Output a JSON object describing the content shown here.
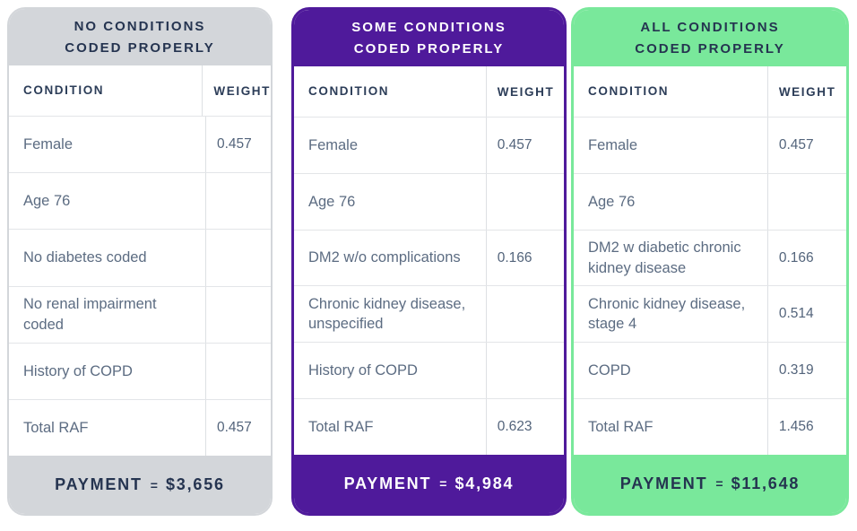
{
  "columns": {
    "condition": "CONDITION",
    "weight": "WEIGHT"
  },
  "cards": [
    {
      "title_line1": "NO CONDITIONS",
      "title_line2": "CODED PROPERLY",
      "accent_color": "#d3d6da",
      "header_text_color": "#253450",
      "footer_text_color": "#253450",
      "payment_label": "PAYMENT",
      "payment_equals": "=",
      "payment_value": "$3,656",
      "rows": [
        {
          "condition": "Female",
          "weight": "0.457"
        },
        {
          "condition": "Age 76",
          "weight": ""
        },
        {
          "condition": "No diabetes coded",
          "weight": ""
        },
        {
          "condition": "No renal impairment coded",
          "weight": ""
        },
        {
          "condition": "History of COPD",
          "weight": ""
        },
        {
          "condition": "Total RAF",
          "weight": "0.457"
        }
      ]
    },
    {
      "title_line1": "SOME CONDITIONS",
      "title_line2": "CODED PROPERLY",
      "accent_color": "#4f1a9b",
      "header_text_color": "#ffffff",
      "footer_text_color": "#ffffff",
      "payment_label": "PAYMENT",
      "payment_equals": "=",
      "payment_value": "$4,984",
      "rows": [
        {
          "condition": "Female",
          "weight": "0.457"
        },
        {
          "condition": "Age 76",
          "weight": ""
        },
        {
          "condition": "DM2 w/o complications",
          "weight": "0.166"
        },
        {
          "condition": "Chronic kidney disease, unspecified",
          "weight": ""
        },
        {
          "condition": "History of COPD",
          "weight": ""
        },
        {
          "condition": "Total RAF",
          "weight": "0.623"
        }
      ]
    },
    {
      "title_line1": "ALL CONDITIONS",
      "title_line2": "CODED PROPERLY",
      "accent_color": "#79e89b",
      "header_text_color": "#253450",
      "footer_text_color": "#253450",
      "payment_label": "PAYMENT",
      "payment_equals": "=",
      "payment_value": "$11,648",
      "rows": [
        {
          "condition": "Female",
          "weight": "0.457"
        },
        {
          "condition": "Age 76",
          "weight": ""
        },
        {
          "condition": "DM2 w diabetic chronic kidney disease",
          "weight": "0.166"
        },
        {
          "condition": "Chronic kidney disease, stage 4",
          "weight": "0.514"
        },
        {
          "condition": "COPD",
          "weight": "0.319"
        },
        {
          "condition": "Total RAF",
          "weight": "1.456"
        }
      ]
    }
  ],
  "chart_data": [
    {
      "type": "table",
      "title": "NO CONDITIONS CODED PROPERLY",
      "columns": [
        "CONDITION",
        "WEIGHT"
      ],
      "rows": [
        [
          "Female",
          0.457
        ],
        [
          "Age 76",
          null
        ],
        [
          "No diabetes coded",
          null
        ],
        [
          "No renal impairment coded",
          null
        ],
        [
          "History of COPD",
          null
        ],
        [
          "Total RAF",
          0.457
        ]
      ],
      "payment": "$3,656"
    },
    {
      "type": "table",
      "title": "SOME CONDITIONS CODED PROPERLY",
      "columns": [
        "CONDITION",
        "WEIGHT"
      ],
      "rows": [
        [
          "Female",
          0.457
        ],
        [
          "Age 76",
          null
        ],
        [
          "DM2 w/o complications",
          0.166
        ],
        [
          "Chronic kidney disease, unspecified",
          null
        ],
        [
          "History of COPD",
          null
        ],
        [
          "Total RAF",
          0.623
        ]
      ],
      "payment": "$4,984"
    },
    {
      "type": "table",
      "title": "ALL CONDITIONS CODED PROPERLY",
      "columns": [
        "CONDITION",
        "WEIGHT"
      ],
      "rows": [
        [
          "Female",
          0.457
        ],
        [
          "Age 76",
          null
        ],
        [
          "DM2 w diabetic chronic kidney disease",
          0.166
        ],
        [
          "Chronic kidney disease, stage 4",
          0.514
        ],
        [
          "COPD",
          0.319
        ],
        [
          "Total RAF",
          1.456
        ]
      ],
      "payment": "$11,648"
    }
  ]
}
